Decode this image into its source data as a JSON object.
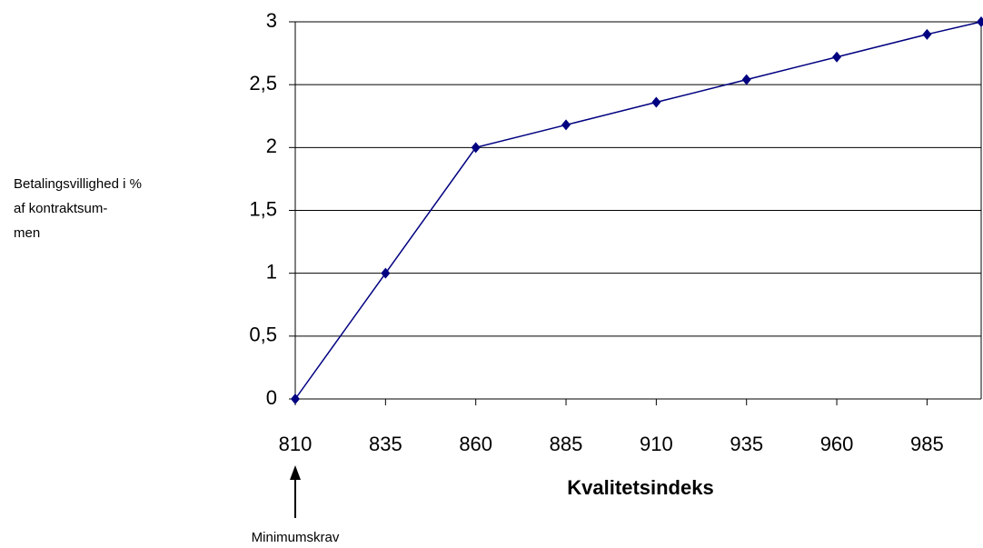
{
  "chart_data": {
    "type": "line",
    "x_label": "Kvalitetsindeks",
    "y_label": [
      "Betalingsvillighed i %",
      "af kontraktsum-",
      "men"
    ],
    "annotation": "Minimumskrav",
    "x": [
      810,
      835,
      860,
      885,
      910,
      935,
      960,
      985,
      1000
    ],
    "series": [
      {
        "name": "Betalingsvillighed",
        "color": "#000080",
        "values": [
          0,
          1,
          2,
          2.18,
          2.36,
          2.54,
          2.72,
          2.9,
          3
        ]
      }
    ],
    "xlim": [
      810,
      1000
    ],
    "xticks": [
      810,
      835,
      860,
      885,
      910,
      935,
      960,
      985
    ],
    "ylim": [
      0,
      3
    ],
    "yticks": [
      0,
      {
        "value": 0.5,
        "label": "0,5"
      },
      1,
      {
        "value": 1.5,
        "label": "1,5"
      },
      2,
      {
        "value": 2.5,
        "label": "2,5"
      },
      3
    ],
    "grid": true
  }
}
